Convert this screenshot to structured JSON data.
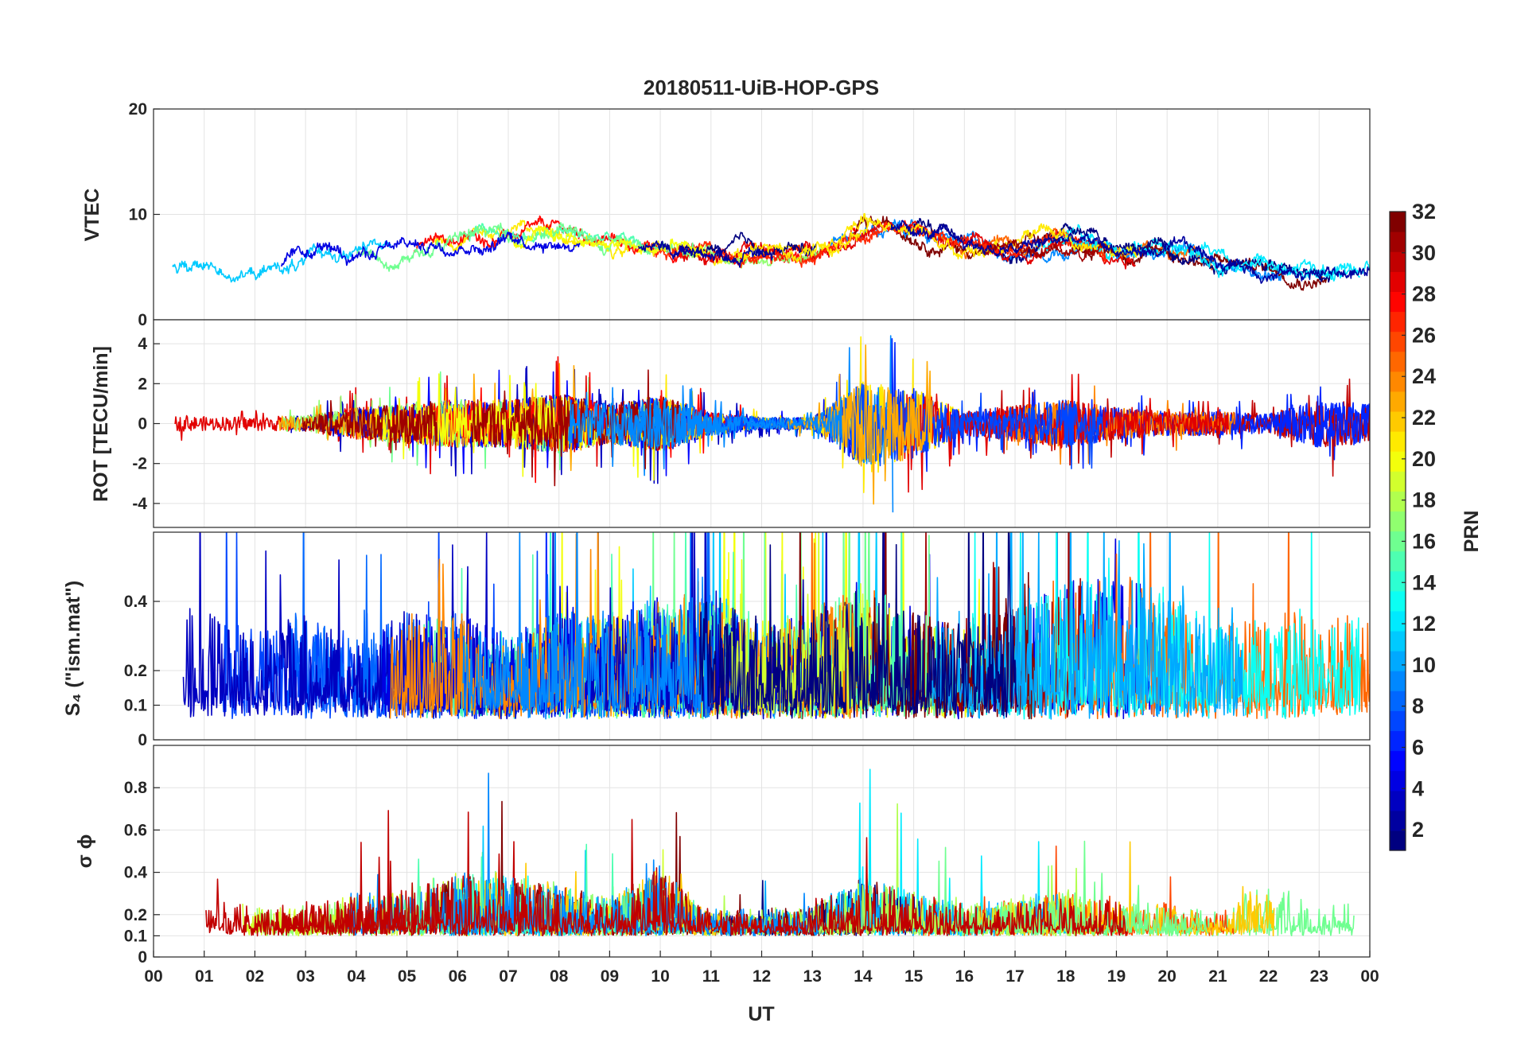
{
  "chart_data": {
    "type": "line",
    "title": "20180511-UiB-HOP-GPS",
    "xlabel": "UT",
    "x_ticks": [
      "00",
      "01",
      "02",
      "03",
      "04",
      "05",
      "06",
      "07",
      "08",
      "09",
      "10",
      "11",
      "12",
      "13",
      "14",
      "15",
      "16",
      "17",
      "18",
      "19",
      "20",
      "21",
      "22",
      "23",
      "00"
    ],
    "xlim": [
      0,
      24
    ],
    "grid": true,
    "colormap": "jet",
    "colorbar": {
      "label": "PRN",
      "range": [
        1,
        32
      ],
      "ticks": [
        "2",
        "4",
        "6",
        "8",
        "10",
        "12",
        "14",
        "16",
        "18",
        "20",
        "22",
        "24",
        "26",
        "28",
        "30",
        "32"
      ],
      "placement": "right"
    },
    "panels": [
      {
        "id": "vtec",
        "ylabel": "VTEC",
        "ylim": [
          0,
          20
        ],
        "y_ticks": [
          "0",
          "10",
          "20"
        ],
        "envelope": [
          [
            0,
            5.5
          ],
          [
            1,
            5
          ],
          [
            2,
            4.5
          ],
          [
            3,
            5.5
          ],
          [
            4,
            6.5
          ],
          [
            5,
            6.5
          ],
          [
            6,
            7.5
          ],
          [
            7,
            8
          ],
          [
            8,
            8
          ],
          [
            9,
            7.5
          ],
          [
            10,
            6.5
          ],
          [
            11,
            6.5
          ],
          [
            12,
            6.5
          ],
          [
            13,
            6.5
          ],
          [
            14,
            8.5
          ],
          [
            15,
            8.5
          ],
          [
            16,
            7
          ],
          [
            17,
            6.5
          ],
          [
            18,
            7.5
          ],
          [
            19,
            6.5
          ],
          [
            20,
            6.5
          ],
          [
            21,
            5.5
          ],
          [
            22,
            5
          ],
          [
            23,
            4.5
          ],
          [
            24,
            4.5
          ]
        ]
      },
      {
        "id": "rot",
        "ylabel": "ROT [TECU/min]",
        "ylim": [
          -5.2,
          5.2
        ],
        "y_ticks": [
          "-4",
          "-2",
          "0",
          "2",
          "4"
        ],
        "activity": [
          [
            0,
            0.4
          ],
          [
            1,
            0.35
          ],
          [
            2,
            0.35
          ],
          [
            3,
            0.4
          ],
          [
            4,
            0.8
          ],
          [
            5,
            1.0
          ],
          [
            6,
            1.2
          ],
          [
            7,
            1.2
          ],
          [
            8,
            1.5
          ],
          [
            9,
            1.0
          ],
          [
            10,
            1.4
          ],
          [
            11,
            0.6
          ],
          [
            12,
            0.3
          ],
          [
            13,
            0.3
          ],
          [
            14,
            2.2
          ],
          [
            15,
            1.8
          ],
          [
            16,
            0.6
          ],
          [
            17,
            0.9
          ],
          [
            18,
            1.2
          ],
          [
            19,
            0.8
          ],
          [
            20,
            0.6
          ],
          [
            21,
            0.6
          ],
          [
            22,
            0.5
          ],
          [
            23,
            1.2
          ],
          [
            24,
            1.0
          ]
        ]
      },
      {
        "id": "s4",
        "ylabel": "S₄ (\"ism.mat\")",
        "ylim": [
          0,
          0.6
        ],
        "y_ticks": [
          "0",
          "0.1",
          "0.2",
          "0.4"
        ],
        "activity": [
          [
            0,
            0.2
          ],
          [
            1,
            0.22
          ],
          [
            2,
            0.18
          ],
          [
            3,
            0.2
          ],
          [
            4,
            0.14
          ],
          [
            5,
            0.2
          ],
          [
            6,
            0.2
          ],
          [
            7,
            0.14
          ],
          [
            8,
            0.2
          ],
          [
            9,
            0.2
          ],
          [
            10,
            0.22
          ],
          [
            11,
            0.24
          ],
          [
            12,
            0.18
          ],
          [
            13,
            0.2
          ],
          [
            14,
            0.26
          ],
          [
            15,
            0.2
          ],
          [
            16,
            0.18
          ],
          [
            17,
            0.24
          ],
          [
            18,
            0.26
          ],
          [
            19,
            0.28
          ],
          [
            20,
            0.24
          ],
          [
            21,
            0.2
          ],
          [
            22,
            0.2
          ],
          [
            23,
            0.2
          ],
          [
            24,
            0.2
          ]
        ]
      },
      {
        "id": "sigphi",
        "ylabel": "σ ϕ",
        "ylim": [
          0,
          1
        ],
        "y_ticks": [
          "0",
          "0.1",
          "0.2",
          "0.4",
          "0.6",
          "0.8"
        ],
        "activity": [
          [
            0,
            0.04
          ],
          [
            1,
            0.06
          ],
          [
            2,
            0.04
          ],
          [
            3,
            0.04
          ],
          [
            4,
            0.06
          ],
          [
            5,
            0.07
          ],
          [
            6,
            0.09
          ],
          [
            7,
            0.09
          ],
          [
            8,
            0.07
          ],
          [
            9,
            0.05
          ],
          [
            10,
            0.1
          ],
          [
            11,
            0.03
          ],
          [
            12,
            0.03
          ],
          [
            13,
            0.04
          ],
          [
            14,
            0.09
          ],
          [
            15,
            0.06
          ],
          [
            16,
            0.04
          ],
          [
            17,
            0.05
          ],
          [
            18,
            0.06
          ],
          [
            19,
            0.05
          ],
          [
            20,
            0.04
          ],
          [
            21,
            0.03
          ],
          [
            22,
            0.08
          ],
          [
            23,
            0.05
          ],
          [
            24,
            0.05
          ]
        ]
      }
    ]
  }
}
